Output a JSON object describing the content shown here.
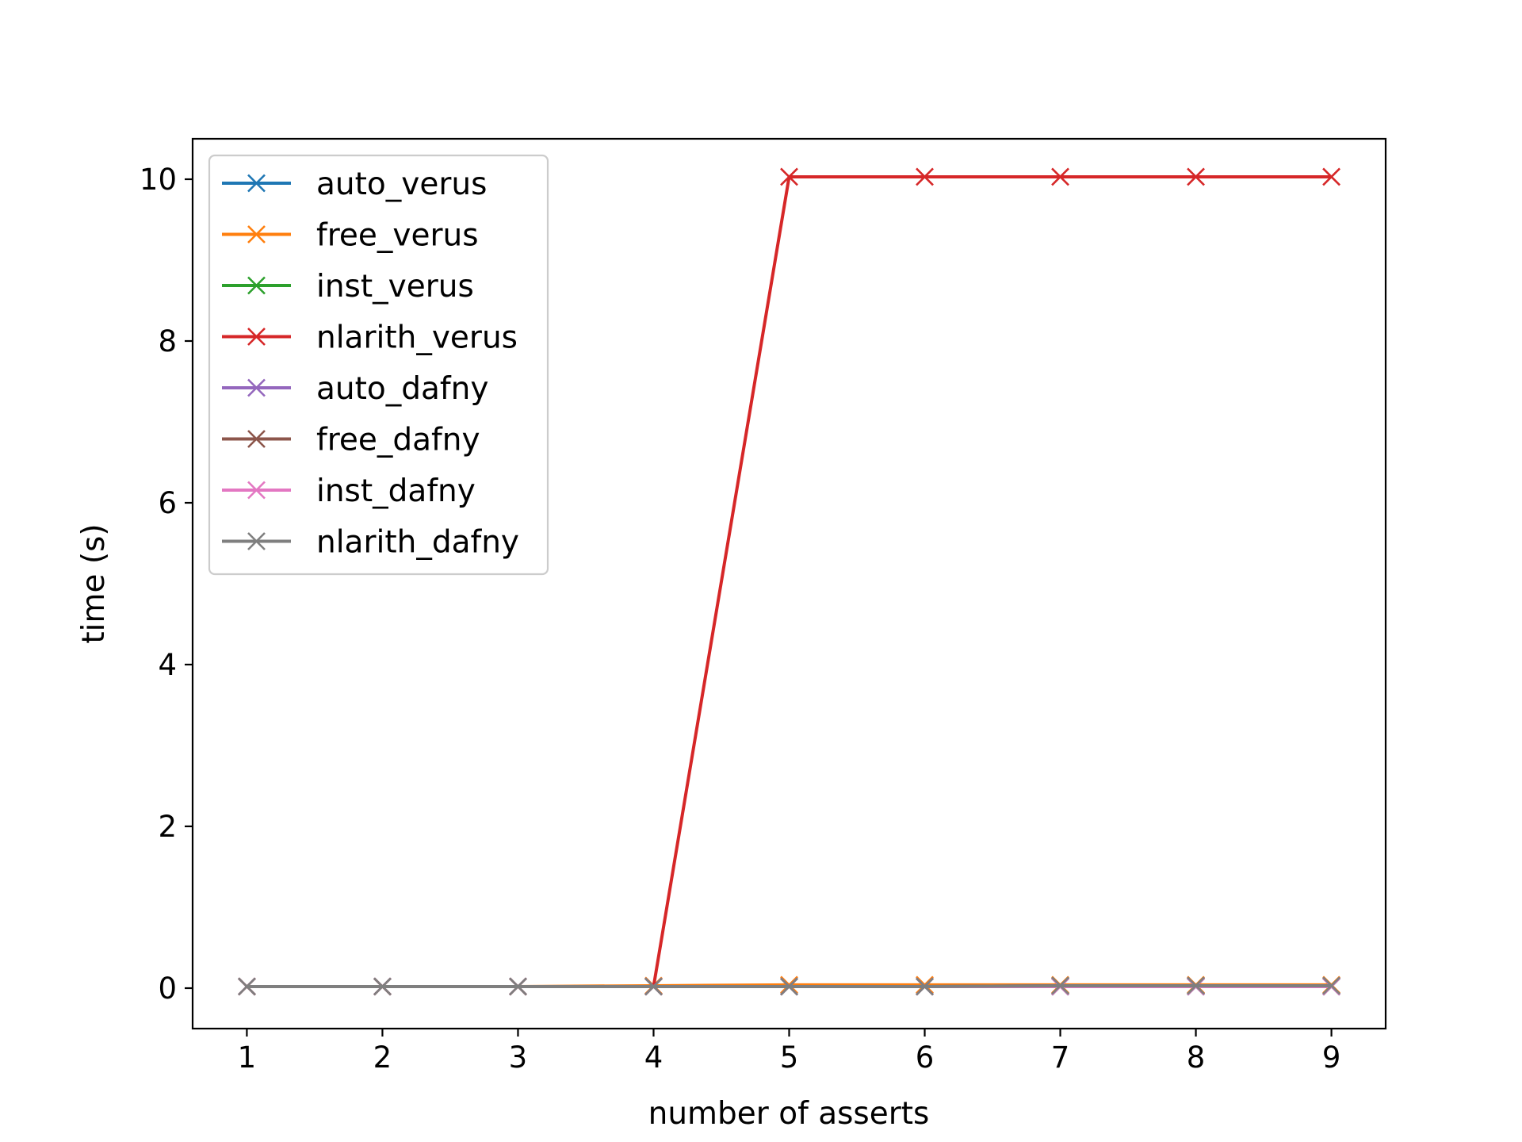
{
  "chart_data": {
    "type": "line",
    "title": "",
    "xlabel": "number of asserts",
    "ylabel": "time (s)",
    "x": [
      1,
      2,
      3,
      4,
      5,
      6,
      7,
      8,
      9
    ],
    "xlim": [
      0.6,
      9.4
    ],
    "ylim": [
      -0.5,
      10.5
    ],
    "xticks": [
      1,
      2,
      3,
      4,
      5,
      6,
      7,
      8,
      9
    ],
    "yticks": [
      0,
      2,
      4,
      6,
      8,
      10
    ],
    "grid": false,
    "legend_position": "top-left",
    "marker": "x",
    "series": [
      {
        "name": "auto_verus",
        "color": "#1f77b4",
        "values": [
          0.02,
          0.02,
          0.02,
          0.02,
          0.02,
          0.02,
          0.02,
          0.02,
          0.02
        ]
      },
      {
        "name": "free_verus",
        "color": "#ff7f0e",
        "values": [
          0.02,
          0.02,
          0.02,
          0.03,
          0.04,
          0.04,
          0.04,
          0.04,
          0.04
        ]
      },
      {
        "name": "inst_verus",
        "color": "#2ca02c",
        "values": [
          0.02,
          0.02,
          0.02,
          0.02,
          0.02,
          0.02,
          0.02,
          0.02,
          0.02
        ]
      },
      {
        "name": "nlarith_verus",
        "color": "#d62728",
        "values": [
          0.02,
          0.02,
          0.02,
          0.02,
          10.03,
          10.03,
          10.03,
          10.03,
          10.03
        ]
      },
      {
        "name": "auto_dafny",
        "color": "#9467bd",
        "values": [
          0.02,
          0.02,
          0.02,
          0.02,
          0.02,
          0.02,
          0.02,
          0.02,
          0.02
        ]
      },
      {
        "name": "free_dafny",
        "color": "#8c564b",
        "values": [
          0.02,
          0.02,
          0.02,
          0.02,
          0.02,
          0.02,
          0.03,
          0.03,
          0.03
        ]
      },
      {
        "name": "inst_dafny",
        "color": "#e377c2",
        "values": [
          0.02,
          0.02,
          0.02,
          0.02,
          0.02,
          0.02,
          0.02,
          0.02,
          0.02
        ]
      },
      {
        "name": "nlarith_dafny",
        "color": "#7f7f7f",
        "values": [
          0.02,
          0.02,
          0.02,
          0.02,
          0.02,
          0.02,
          0.03,
          0.03,
          0.03
        ]
      }
    ]
  }
}
